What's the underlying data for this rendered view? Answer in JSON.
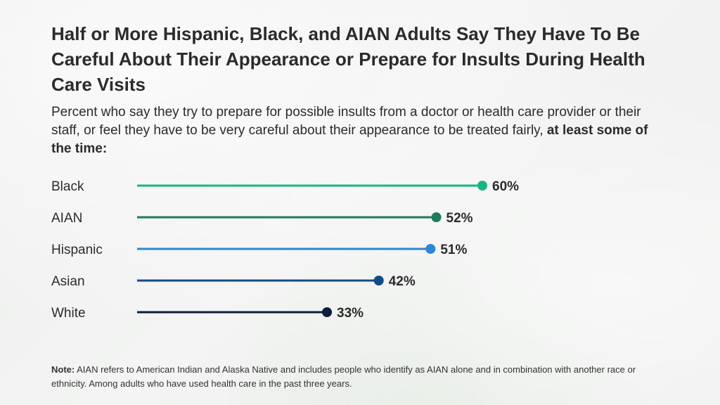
{
  "title": "Half or More Hispanic, Black, and AIAN Adults Say They Have To Be Careful About Their Appearance or Prepare for Insults During Health Care Visits",
  "subtitle": {
    "text": "Percent who say they try to prepare for possible insults from a doctor or health care provider or their staff, or feel they have to be very careful about their appearance to be treated fairly,",
    "bold": "at least some of the time:"
  },
  "chart_data": {
    "type": "bar",
    "style": "lollipop",
    "categories": [
      "Black",
      "AIAN",
      "Hispanic",
      "Asian",
      "White"
    ],
    "values": [
      60,
      52,
      51,
      42,
      33
    ],
    "value_labels": [
      "60%",
      "52%",
      "51%",
      "42%",
      "33%"
    ],
    "colors": [
      "#1bb584",
      "#1e7a5c",
      "#2e86d6",
      "#0e4c8a",
      "#0b1f3a"
    ],
    "xlim": [
      0,
      60
    ],
    "grid": false
  },
  "note": {
    "label": "Note:",
    "text": "AIAN refers to American Indian and Alaska Native and includes people who identify as AIAN alone and in combination with another race or ethnicity. Among adults who have used health care in the past three years."
  }
}
